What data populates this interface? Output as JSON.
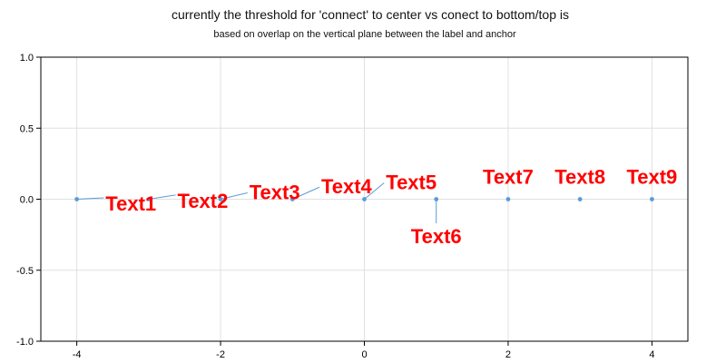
{
  "chart_data": {
    "type": "scatter",
    "title": "currently the threshold for 'connect' to center vs conect to bottom/top is",
    "subtitle": "based on overlap on the vertical plane between the label and anchor",
    "xlabel": "",
    "ylabel": "",
    "xlim": [
      -4.5,
      4.5
    ],
    "ylim": [
      -1.0,
      1.0
    ],
    "grid": true,
    "x_ticks": [
      -4,
      -2,
      0,
      2,
      4
    ],
    "y_ticks": [
      1.0,
      0.5,
      0.0,
      -0.5,
      -1.0
    ],
    "x_tick_labels": [
      "-4",
      "-2",
      "0",
      "2",
      "4"
    ],
    "y_tick_labels": [
      "1.0",
      "0.5",
      "0.0",
      "-0.5",
      "-1.0"
    ],
    "series": [
      {
        "x": [
          -4,
          -3,
          -2,
          -1,
          0,
          1,
          2,
          3,
          4
        ],
        "y": [
          0,
          0,
          0,
          0,
          0,
          0,
          0,
          0,
          0
        ]
      }
    ],
    "annotations": [
      {
        "text": "Text1",
        "x": -4,
        "y": 0,
        "label_x": -3.6,
        "label_y": -0.08
      },
      {
        "text": "Text2",
        "x": -3,
        "y": 0,
        "label_x": -2.6,
        "label_y": -0.06
      },
      {
        "text": "Text3",
        "x": -2,
        "y": 0,
        "label_x": -1.6,
        "label_y": 0.0
      },
      {
        "text": "Text4",
        "x": -1,
        "y": 0,
        "label_x": -0.6,
        "label_y": 0.04
      },
      {
        "text": "Text5",
        "x": 0,
        "y": 0,
        "label_x": 0.3,
        "label_y": 0.07
      },
      {
        "text": "Text6",
        "x": 1,
        "y": 0,
        "label_x": 1.0,
        "label_y": -0.31
      },
      {
        "text": "Text7",
        "x": 2,
        "y": 0,
        "label_x": 2.0,
        "label_y": 0.11
      },
      {
        "text": "Text8",
        "x": 3,
        "y": 0,
        "label_x": 3.0,
        "label_y": 0.11
      },
      {
        "text": "Text9",
        "x": 4,
        "y": 0,
        "label_x": 4.0,
        "label_y": 0.11
      }
    ],
    "colors": {
      "point": "#5b9bd5",
      "connector": "#5b9bd5",
      "label": "#ff0000",
      "grid": "#e0e0e0",
      "axis": "#000000"
    }
  }
}
